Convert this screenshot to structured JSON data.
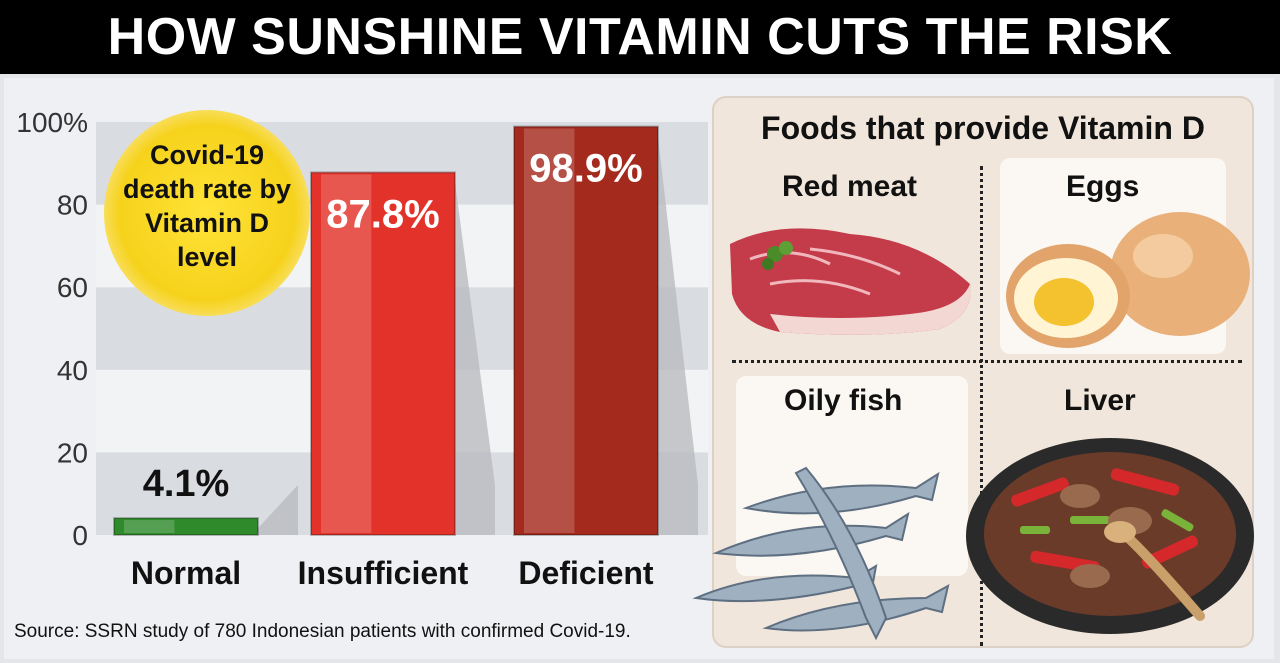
{
  "title": "HOW SUNSHINE VITAMIN CUTS THE RISK",
  "chart_data": {
    "type": "bar",
    "title": "Covid-19 death rate by Vitamin D level",
    "categories": [
      "Normal",
      "Insufficient",
      "Deficient"
    ],
    "values": [
      4.1,
      87.8,
      98.9
    ],
    "value_labels": [
      "4.1%",
      "87.8%",
      "98.9%"
    ],
    "y_ticks": [
      "0",
      "20",
      "40",
      "60",
      "80",
      "100%"
    ],
    "ylim": [
      0,
      100
    ],
    "colors": [
      "#2f8a2b",
      "#e2322a",
      "#a52a1e"
    ]
  },
  "callout": {
    "lines": [
      "Covid-19",
      "death rate by",
      "Vitamin D",
      "level"
    ]
  },
  "foods": {
    "title": "Foods that provide Vitamin D",
    "items": [
      "Red meat",
      "Eggs",
      "Oily fish",
      "Liver"
    ]
  },
  "source": "Source: SSRN study of 780 Indonesian patients with confirmed Covid-19."
}
